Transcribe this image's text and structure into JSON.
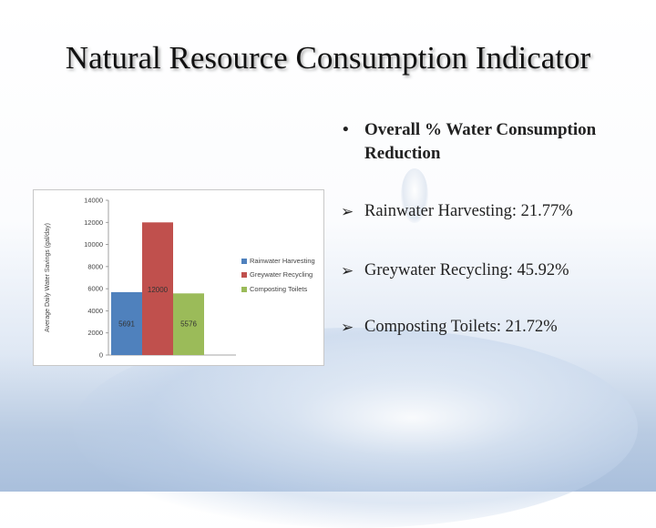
{
  "slide": {
    "title": "Natural Resource Consumption Indicator",
    "bullet_main": "Overall % Water Consumption Reduction",
    "bullets": [
      "Rainwater Harvesting: 21.77%",
      "Greywater Recycling: 45.92%",
      "Composting Toilets: 21.72%"
    ],
    "icons": {
      "bullet": "bullet-dot-icon",
      "arrow": "arrow-bullet-icon"
    }
  },
  "chart_data": {
    "type": "bar",
    "categories": [
      "Rainwater Harvesting",
      "Greywater Recycling",
      "Composting Toilets"
    ],
    "values": [
      5691,
      12000,
      5576
    ],
    "data_labels": [
      "5691",
      "12000",
      "5576"
    ],
    "colors": [
      "#4f81bd",
      "#c0504d",
      "#9bbb59"
    ],
    "ylabel": "Average Daily Water Savings (gal/day)",
    "xlabel": "",
    "ylim": [
      0,
      14000
    ],
    "yticks": [
      0,
      2000,
      4000,
      6000,
      8000,
      10000,
      12000,
      14000
    ],
    "grid": false,
    "legend": {
      "position": "right",
      "entries": [
        "Rainwater Harvesting",
        "Greywater Recycling",
        "Composting Toilets"
      ]
    }
  }
}
